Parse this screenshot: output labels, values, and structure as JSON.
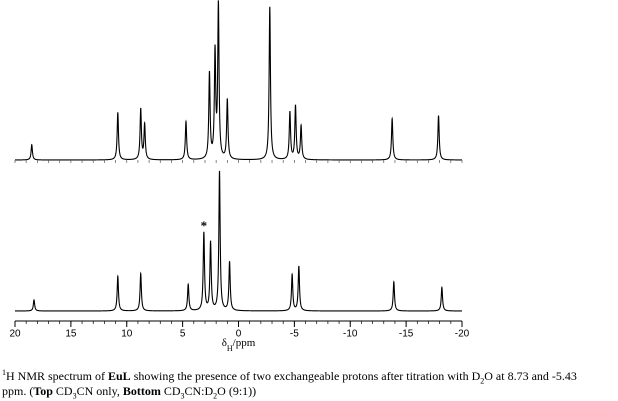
{
  "chart_data": {
    "type": "spectrum",
    "xlim": [
      20,
      -20
    ],
    "xticks": [
      20,
      15,
      10,
      5,
      0,
      -5,
      -10,
      -15,
      -20
    ],
    "xminor_step": 1,
    "x_label": [
      {
        "text": "δ",
        "style": "plain"
      },
      {
        "text": "H",
        "style": "sub"
      },
      {
        "text": "/ppm",
        "style": "plain"
      }
    ],
    "color": "#000000",
    "series": [
      {
        "x": [
          18.5,
          10.8,
          8.75,
          8.4,
          4.7,
          2.6,
          2.1,
          1.8,
          1.0,
          -2.8,
          -4.6,
          -5.1,
          -5.6,
          -13.75,
          -17.9
        ],
        "values": [
          10,
          31,
          33,
          23,
          25,
          56,
          69,
          100,
          39,
          100,
          31,
          35,
          22,
          27,
          29
        ]
      },
      {
        "x": [
          18.3,
          10.8,
          8.75,
          4.5,
          3.1,
          2.5,
          1.7,
          0.8,
          -2.8,
          -4.8,
          -5.4,
          -13.9,
          -18.2
        ],
        "values": [
          8,
          25,
          27,
          19,
          56,
          49,
          100,
          35,
          -0.001,
          26,
          32,
          21,
          17
        ]
      }
    ],
    "annotations": [
      {
        "text": "*",
        "x": 3.1
      }
    ],
    "caption": [
      {
        "text": "1",
        "style": "sup"
      },
      {
        "text": "H NMR spectrum of ",
        "style": "plain"
      },
      {
        "text": "EuL",
        "style": "bold"
      },
      {
        "text": " showing the presence of two exchangeable protons after titration with  D",
        "style": "plain"
      },
      {
        "text": "2",
        "style": "sub"
      },
      {
        "text": "O at 8.73 and -5.43 ppm.  (",
        "style": "plain"
      },
      {
        "text": "Top",
        "style": "bold"
      },
      {
        "text": " CD",
        "style": "plain"
      },
      {
        "text": "3",
        "style": "sub"
      },
      {
        "text": "CN only, ",
        "style": "plain"
      },
      {
        "text": "Bottom",
        "style": "bold"
      },
      {
        "text": "  CD",
        "style": "plain"
      },
      {
        "text": "3",
        "style": "sub"
      },
      {
        "text": "CN:D",
        "style": "plain"
      },
      {
        "text": "2",
        "style": "sub"
      },
      {
        "text": "O (9:1))",
        "style": "plain"
      }
    ]
  }
}
